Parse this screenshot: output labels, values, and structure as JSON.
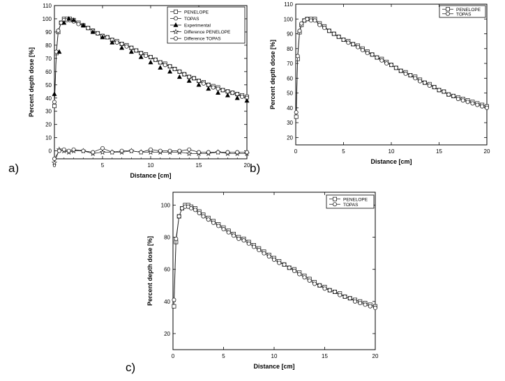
{
  "panel_labels": [
    "a)",
    "b)",
    "c)"
  ],
  "chart_data": [
    {
      "type": "scatter",
      "panel": "a)",
      "xlabel": "Distance [cm]",
      "ylabel": "Percent depth dose [%]",
      "xlim": [
        0,
        20
      ],
      "ylim": [
        -6,
        110
      ],
      "xticks": [
        0,
        5,
        10,
        15,
        20
      ],
      "xticks_minor": [
        1,
        2,
        3,
        4,
        6,
        7,
        8,
        9,
        11,
        12,
        13,
        14,
        16,
        17,
        18,
        19
      ],
      "yticks": [
        0,
        10,
        20,
        30,
        40,
        50,
        60,
        70,
        80,
        90,
        100,
        110
      ],
      "legend_position": "top-right",
      "series": [
        {
          "name": "PENELOPE",
          "marker": "square",
          "line": true,
          "x": [
            0,
            0.2,
            0.4,
            0.7,
            1,
            1.3,
            1.6,
            2,
            2.5,
            3,
            3.5,
            4,
            4.5,
            5,
            5.5,
            6,
            6.5,
            7,
            7.5,
            8,
            8.5,
            9,
            9.5,
            10,
            10.5,
            11,
            11.5,
            12,
            12.5,
            13,
            13.5,
            14,
            14.5,
            15,
            15.5,
            16,
            16.5,
            17,
            17.5,
            18,
            18.5,
            19,
            19.5,
            20
          ],
          "y": [
            34,
            74,
            90,
            97,
            100,
            100,
            100,
            99,
            97,
            95,
            93,
            91,
            89,
            87,
            86,
            84,
            83,
            81,
            80,
            78,
            76,
            74,
            73,
            71,
            69,
            67,
            66,
            64,
            62,
            60,
            58,
            56,
            55,
            53,
            52,
            50,
            49,
            48,
            46,
            45,
            44,
            43,
            42,
            41
          ]
        },
        {
          "name": "TOPAS",
          "marker": "circle",
          "line": true,
          "x": [
            0,
            0.2,
            0.4,
            0.7,
            1,
            1.3,
            1.6,
            2,
            2.5,
            3,
            3.5,
            4,
            4.5,
            5,
            5.5,
            6,
            6.5,
            7,
            7.5,
            8,
            8.5,
            9,
            9.5,
            10,
            10.5,
            11,
            11.5,
            12,
            12.5,
            13,
            13.5,
            14,
            14.5,
            15,
            15.5,
            16,
            16.5,
            17,
            17.5,
            18,
            18.5,
            19,
            19.5,
            20
          ],
          "y": [
            37,
            75,
            91,
            97,
            99,
            99,
            99,
            98,
            96,
            95,
            93,
            91,
            89,
            87,
            86,
            84,
            82,
            81,
            79,
            78,
            76,
            74,
            72,
            71,
            69,
            67,
            65,
            64,
            62,
            60,
            58,
            56,
            55,
            53,
            51,
            50,
            48,
            47,
            46,
            45,
            44,
            43,
            41,
            40
          ]
        },
        {
          "name": "Experimental",
          "marker": "triangle-filled",
          "line": false,
          "x": [
            0,
            0.5,
            1,
            1.5,
            2,
            3,
            4,
            5,
            6,
            7,
            8,
            9,
            10,
            11,
            12,
            13,
            14,
            15,
            16,
            17,
            18,
            19,
            20
          ],
          "y": [
            43,
            75,
            97,
            100,
            99,
            95,
            90,
            86,
            82,
            78,
            75,
            71,
            67,
            63,
            60,
            56,
            53,
            50,
            47,
            44,
            42,
            40,
            38
          ]
        },
        {
          "name": "Difference PENELOPE",
          "marker": "star",
          "line": true,
          "x": [
            0,
            0.5,
            1,
            1.5,
            2,
            3,
            4,
            5,
            6,
            7,
            8,
            9,
            10,
            11,
            12,
            13,
            14,
            15,
            16,
            17,
            18,
            19,
            20
          ],
          "y": [
            -9,
            1,
            0,
            -1,
            0,
            0,
            -2,
            -1,
            -1,
            -1,
            0,
            -1,
            -1,
            -1,
            -1,
            -1,
            -2,
            -2,
            -2,
            -1,
            -2,
            -2,
            -2
          ]
        },
        {
          "name": "Difference TOPAS",
          "marker": "circle",
          "line": true,
          "x": [
            0,
            0.5,
            1,
            1.5,
            2,
            3,
            4,
            5,
            6,
            7,
            8,
            9,
            10,
            11,
            12,
            13,
            14,
            15,
            16,
            17,
            18,
            19,
            20
          ],
          "y": [
            -6,
            0,
            1,
            0,
            1,
            0,
            -1,
            2,
            -1,
            0,
            0,
            -1,
            1,
            0,
            0,
            0,
            1,
            -1,
            -1,
            -1,
            -1,
            -1,
            -1
          ]
        }
      ]
    },
    {
      "type": "scatter",
      "panel": "b)",
      "xlabel": "Distance [cm]",
      "ylabel": "Percent depth dose [%]",
      "xlim": [
        0,
        20
      ],
      "ylim": [
        15,
        110
      ],
      "xticks": [
        0,
        5,
        10,
        15,
        20
      ],
      "yticks": [
        20,
        30,
        40,
        50,
        60,
        70,
        80,
        90,
        100,
        110
      ],
      "legend_position": "top-right",
      "series": [
        {
          "name": "PENELOPE",
          "marker": "square",
          "line": true,
          "x": [
            0.05,
            0.2,
            0.4,
            0.6,
            0.9,
            1.2,
            1.6,
            2,
            2.5,
            3,
            3.5,
            4,
            4.5,
            5,
            5.5,
            6,
            6.5,
            7,
            7.5,
            8,
            8.5,
            9,
            9.5,
            10,
            10.5,
            11,
            11.5,
            12,
            12.5,
            13,
            13.5,
            14,
            14.5,
            15,
            15.5,
            16,
            16.5,
            17,
            17.5,
            18,
            18.5,
            19,
            19.5,
            20
          ],
          "y": [
            34,
            73,
            91,
            96,
            99,
            100,
            100,
            100,
            97,
            95,
            92,
            90,
            88,
            86,
            85,
            83,
            82,
            80,
            78,
            76,
            74,
            73,
            71,
            69,
            67,
            65,
            64,
            62,
            61,
            59,
            57,
            56,
            54,
            52,
            51,
            49,
            48,
            47,
            46,
            45,
            44,
            43,
            42,
            41
          ]
        },
        {
          "name": "TOPAS",
          "marker": "circle",
          "line": true,
          "x": [
            0.05,
            0.2,
            0.4,
            0.6,
            0.9,
            1.2,
            1.6,
            2,
            2.5,
            3,
            3.5,
            4,
            4.5,
            5,
            5.5,
            6,
            6.5,
            7,
            7.5,
            8,
            8.5,
            9,
            9.5,
            10,
            10.5,
            11,
            11.5,
            12,
            12.5,
            13,
            13.5,
            14,
            14.5,
            15,
            15.5,
            16,
            16.5,
            17,
            17.5,
            18,
            18.5,
            19,
            19.5,
            20
          ],
          "y": [
            37,
            75,
            92,
            97,
            99,
            100,
            99,
            99,
            96,
            94,
            92,
            90,
            88,
            86,
            84,
            83,
            81,
            79,
            77,
            76,
            74,
            72,
            70,
            69,
            67,
            65,
            63,
            62,
            60,
            58,
            57,
            55,
            54,
            52,
            51,
            49,
            48,
            46,
            45,
            44,
            43,
            42,
            41,
            40
          ]
        }
      ]
    },
    {
      "type": "scatter",
      "panel": "c)",
      "xlabel": "Distance [cm]",
      "ylabel": "Percent depth dose [%]",
      "xlim": [
        0,
        20
      ],
      "ylim": [
        10,
        108
      ],
      "xticks": [
        0,
        5,
        10,
        15,
        20
      ],
      "yticks": [
        20,
        40,
        60,
        80,
        100
      ],
      "legend_position": "top-right",
      "series": [
        {
          "name": "PENELOPE",
          "marker": "square",
          "line": true,
          "x": [
            0.1,
            0.3,
            0.6,
            0.9,
            1.2,
            1.5,
            1.8,
            2.2,
            2.6,
            3,
            3.5,
            4,
            4.5,
            5,
            5.5,
            6,
            6.5,
            7,
            7.5,
            8,
            8.5,
            9,
            9.5,
            10,
            10.5,
            11,
            11.5,
            12,
            12.5,
            13,
            13.5,
            14,
            14.5,
            15,
            15.5,
            16,
            16.5,
            17,
            17.5,
            18,
            18.5,
            19,
            19.5,
            20
          ],
          "y": [
            37,
            77,
            93,
            98,
            100,
            100,
            99,
            98,
            96,
            94,
            92,
            90,
            88,
            86,
            84,
            82,
            80,
            79,
            77,
            75,
            73,
            71,
            69,
            67,
            65,
            63,
            61,
            60,
            58,
            56,
            54,
            52,
            50,
            49,
            47,
            46,
            45,
            43,
            42,
            41,
            40,
            39,
            38,
            37
          ]
        },
        {
          "name": "TOPAS",
          "marker": "circle",
          "line": true,
          "x": [
            0.1,
            0.3,
            0.6,
            0.9,
            1.2,
            1.5,
            1.8,
            2.2,
            2.6,
            3,
            3.5,
            4,
            4.5,
            5,
            5.5,
            6,
            6.5,
            7,
            7.5,
            8,
            8.5,
            9,
            9.5,
            10,
            10.5,
            11,
            11.5,
            12,
            12.5,
            13,
            13.5,
            14,
            14.5,
            15,
            15.5,
            16,
            16.5,
            17,
            17.5,
            18,
            18.5,
            19,
            19.5,
            20
          ],
          "y": [
            41,
            79,
            93,
            98,
            99,
            99,
            98,
            97,
            95,
            93,
            91,
            89,
            87,
            85,
            83,
            81,
            79,
            78,
            76,
            74,
            72,
            70,
            68,
            66,
            64,
            63,
            61,
            59,
            57,
            55,
            53,
            51,
            50,
            48,
            47,
            46,
            44,
            43,
            42,
            40,
            39,
            38,
            37,
            36
          ]
        }
      ]
    }
  ]
}
